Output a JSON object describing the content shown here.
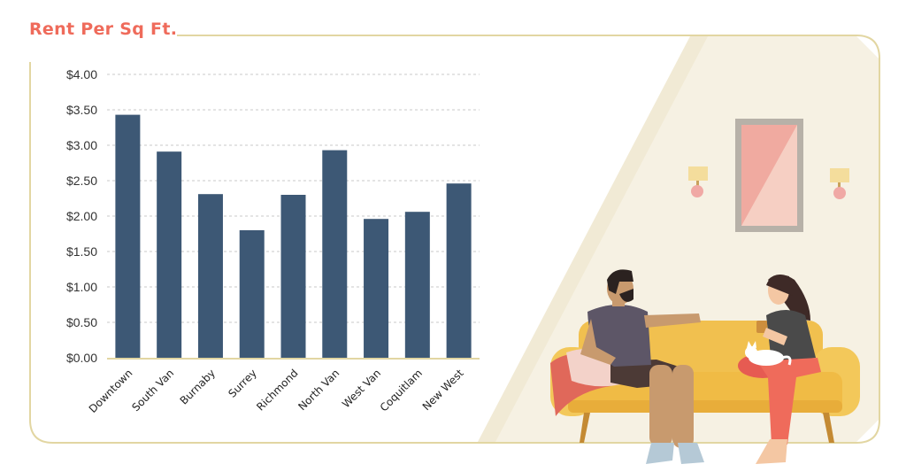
{
  "chart_data": {
    "type": "bar",
    "title": "Rent Per Sq Ft.",
    "categories": [
      "Downtown",
      "South Van",
      "Burnaby",
      "Surrey",
      "Richmond",
      "North Van",
      "West Van",
      "Coquitlam",
      "New West"
    ],
    "values": [
      3.43,
      2.91,
      2.31,
      1.8,
      2.3,
      2.93,
      1.96,
      2.06,
      2.46
    ],
    "yticks": [
      "$0.00",
      "$0.50",
      "$1.00",
      "$1.50",
      "$2.00",
      "$2.50",
      "$3.00",
      "$3.50",
      "$4.00"
    ],
    "ylim": [
      0,
      4
    ],
    "ystep": 0.5,
    "grid": true,
    "xlabel": "",
    "ylabel": ""
  },
  "colors": {
    "bar": "#3d5875",
    "title": "#ef6b5b",
    "frame": "#e2d6a2",
    "grid": "#c8c8c8",
    "wall": "#f6f1e3",
    "sofa": "#f1c04f"
  },
  "illustration": {
    "subject": "couple-on-sofa-illustration",
    "icons": [
      "wall-lamp-icon",
      "wall-mirror-icon",
      "cat-icon"
    ]
  }
}
